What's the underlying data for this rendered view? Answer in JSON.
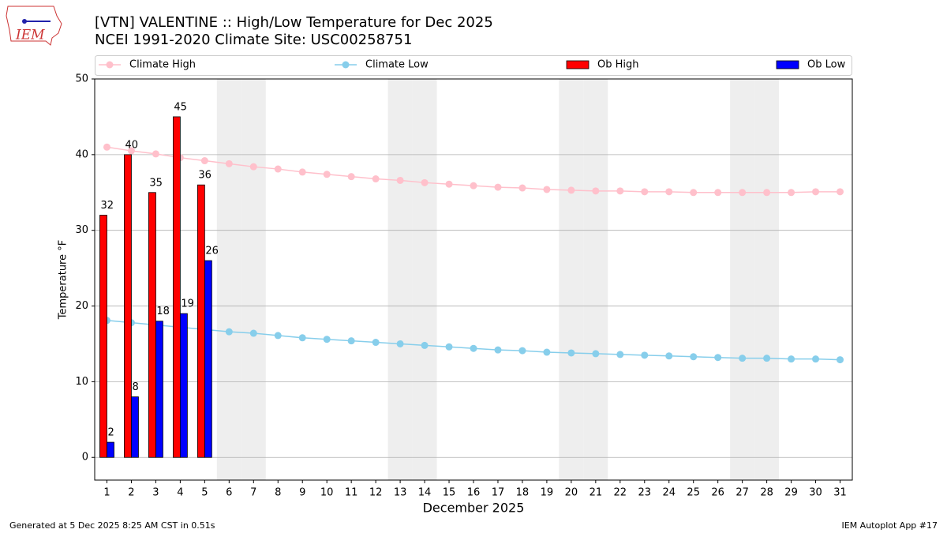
{
  "logo_text": "IEM",
  "chart_data": {
    "type": "bar",
    "title": "[VTN] VALENTINE :: High/Low Temperature for Dec 2025",
    "subtitle": "NCEI 1991-2020 Climate Site: USC00258751",
    "ylabel": "Temperature °F",
    "xlabel": "December 2025",
    "categories": [
      "1",
      "2",
      "3",
      "4",
      "5",
      "6",
      "7",
      "8",
      "9",
      "10",
      "11",
      "12",
      "13",
      "14",
      "15",
      "16",
      "17",
      "18",
      "19",
      "20",
      "21",
      "22",
      "23",
      "24",
      "25",
      "26",
      "27",
      "28",
      "29",
      "30",
      "31"
    ],
    "shaded_days": [
      "6",
      "7",
      "13",
      "14",
      "20",
      "21",
      "27",
      "28"
    ],
    "ylim": [
      -3,
      50
    ],
    "yticks": [
      0,
      10,
      20,
      30,
      40,
      50
    ],
    "grid": true,
    "series": [
      {
        "name": "Climate High",
        "type": "line",
        "color": "pink",
        "values": [
          41.0,
          40.5,
          40.1,
          39.6,
          39.2,
          38.8,
          38.4,
          38.1,
          37.7,
          37.4,
          37.1,
          36.8,
          36.6,
          36.3,
          36.1,
          35.9,
          35.7,
          35.6,
          35.4,
          35.3,
          35.2,
          35.2,
          35.1,
          35.1,
          35.0,
          35.0,
          35.0,
          35.0,
          35.0,
          35.1,
          35.1
        ]
      },
      {
        "name": "Climate Low",
        "type": "line",
        "color": "skyblue",
        "values": [
          18.1,
          17.8,
          17.5,
          17.2,
          16.9,
          16.6,
          16.4,
          16.1,
          15.8,
          15.6,
          15.4,
          15.2,
          15.0,
          14.8,
          14.6,
          14.4,
          14.2,
          14.1,
          13.9,
          13.8,
          13.7,
          13.6,
          13.5,
          13.4,
          13.3,
          13.2,
          13.1,
          13.1,
          13.0,
          13.0,
          12.9
        ]
      },
      {
        "name": "Ob High",
        "type": "bar",
        "color": "red",
        "values": [
          32,
          40,
          35,
          45,
          36,
          null,
          null,
          null,
          null,
          null,
          null,
          null,
          null,
          null,
          null,
          null,
          null,
          null,
          null,
          null,
          null,
          null,
          null,
          null,
          null,
          null,
          null,
          null,
          null,
          null,
          null
        ]
      },
      {
        "name": "Ob Low",
        "type": "bar",
        "color": "blue",
        "values": [
          2,
          8,
          18,
          19,
          26,
          null,
          null,
          null,
          null,
          null,
          null,
          null,
          null,
          null,
          null,
          null,
          null,
          null,
          null,
          null,
          null,
          null,
          null,
          null,
          null,
          null,
          null,
          null,
          null,
          null,
          null
        ]
      }
    ],
    "footer_left": "Generated at 5 Dec 2025 8:25 AM CST in 0.51s",
    "footer_right": "IEM Autoplot App #17"
  }
}
